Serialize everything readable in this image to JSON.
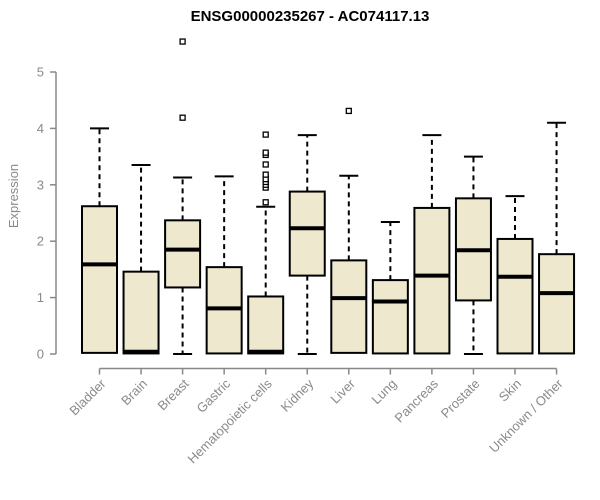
{
  "chart_data": {
    "type": "boxplot",
    "title": "ENSG00000235267 - AC074117.13",
    "ylabel": "Expression",
    "xlabel": "",
    "ylim": [
      0,
      5.6
    ],
    "y_ticks": [
      0,
      1,
      2,
      3,
      4,
      5
    ],
    "grid": "off",
    "legend": "none",
    "categories": [
      "Bladder",
      "Brain",
      "Breast",
      "Gastric",
      "Hematopoietic cells",
      "Kidney",
      "Liver",
      "Lung",
      "Pancreas",
      "Prostate",
      "Skin",
      "Unknown / Other"
    ],
    "boxes": [
      {
        "category": "Bladder",
        "whislo": 0,
        "q1": 0.02,
        "med": 1.59,
        "q3": 2.62,
        "whishi": 4.0,
        "outliers": []
      },
      {
        "category": "Brain",
        "whislo": 0,
        "q1": 0.01,
        "med": 0.04,
        "q3": 1.46,
        "whishi": 3.35,
        "outliers": []
      },
      {
        "category": "Breast",
        "whislo": 0,
        "q1": 1.18,
        "med": 1.85,
        "q3": 2.37,
        "whishi": 3.13,
        "outliers": [
          4.19,
          5.54
        ]
      },
      {
        "category": "Gastric",
        "whislo": 0,
        "q1": 0.01,
        "med": 0.81,
        "q3": 1.54,
        "whishi": 3.15,
        "outliers": []
      },
      {
        "category": "Hematopoietic cells",
        "whislo": 0,
        "q1": 0.01,
        "med": 0.04,
        "q3": 1.02,
        "whishi": 2.61,
        "outliers": [
          2.69,
          2.95,
          3.0,
          3.05,
          3.1,
          3.18,
          3.36,
          3.53,
          3.57,
          3.89
        ]
      },
      {
        "category": "Kidney",
        "whislo": 0,
        "q1": 1.39,
        "med": 2.23,
        "q3": 2.88,
        "whishi": 3.88,
        "outliers": []
      },
      {
        "category": "Liver",
        "whislo": 0,
        "q1": 0.02,
        "med": 0.99,
        "q3": 1.66,
        "whishi": 3.16,
        "outliers": [
          4.31
        ]
      },
      {
        "category": "Lung",
        "whislo": 0,
        "q1": 0.01,
        "med": 0.93,
        "q3": 1.31,
        "whishi": 2.34,
        "outliers": []
      },
      {
        "category": "Pancreas",
        "whislo": 0,
        "q1": 0.01,
        "med": 1.39,
        "q3": 2.59,
        "whishi": 3.88,
        "outliers": []
      },
      {
        "category": "Prostate",
        "whislo": 0,
        "q1": 0.95,
        "med": 1.84,
        "q3": 2.76,
        "whishi": 3.5,
        "outliers": []
      },
      {
        "category": "Skin",
        "whislo": 0,
        "q1": 0.01,
        "med": 1.37,
        "q3": 2.04,
        "whishi": 2.8,
        "outliers": []
      },
      {
        "category": "Unknown / Other",
        "whislo": 0,
        "q1": 0.01,
        "med": 1.08,
        "q3": 1.77,
        "whishi": 4.1,
        "outliers": []
      }
    ],
    "colors": {
      "box_fill": "#EDE8CE",
      "box_stroke": "#000000",
      "median": "#000000",
      "whisker": "#000000",
      "outlier_stroke": "#000000",
      "outlier_fill": "#FFFFFF",
      "axis_line": "#888888",
      "axis_text": "#8A8A8A",
      "title_text": "#000000"
    }
  }
}
